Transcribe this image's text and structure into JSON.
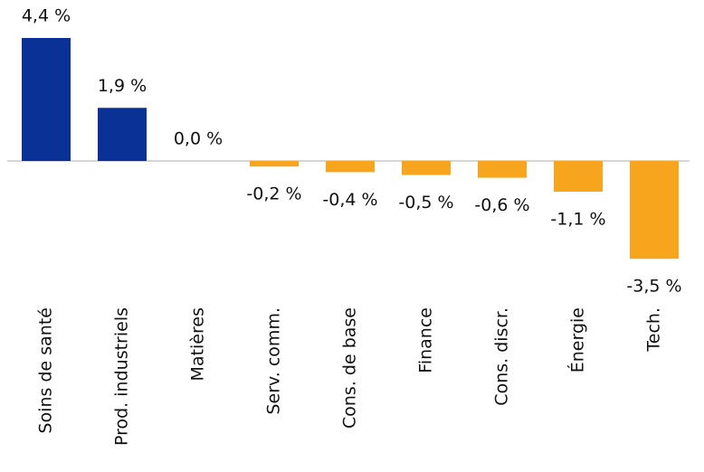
{
  "chart_data": {
    "type": "bar",
    "categories": [
      "Soins de santé",
      "Prod. industriels",
      "Matières",
      "Serv. comm.",
      "Cons. de base",
      "Finance",
      "Cons. discr.",
      "Énergie",
      "Tech."
    ],
    "values": [
      4.4,
      1.9,
      0.0,
      -0.2,
      -0.4,
      -0.5,
      -0.6,
      -1.1,
      -3.5
    ],
    "value_labels": [
      "4,4 %",
      "1,9 %",
      "0,0 %",
      "-0,2 %",
      "-0,4 %",
      "-0,5 %",
      "-0,6 %",
      "-1,1 %",
      "-3,5 %"
    ],
    "colors": {
      "positive": "#0a3196",
      "negative": "#f7a51c"
    }
  }
}
